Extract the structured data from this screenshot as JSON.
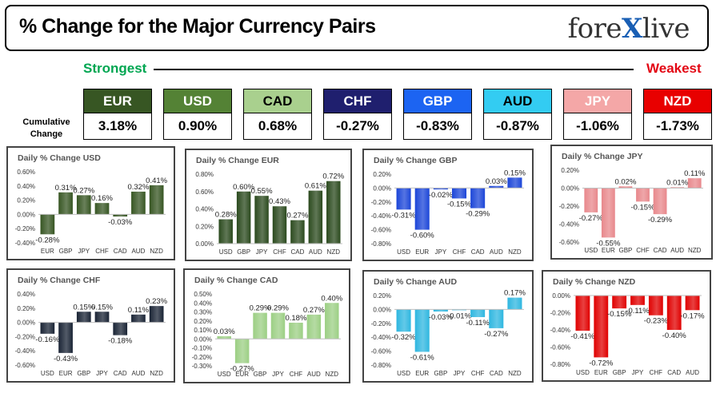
{
  "header": {
    "title": "% Change for the Major Currency Pairs",
    "logo_left": "fore",
    "logo_x": "X",
    "logo_right": "live"
  },
  "strength": {
    "strongest": "Strongest",
    "weakest": "Weakest",
    "cumulative_label_1": "Cumulative",
    "cumulative_label_2": "Change"
  },
  "currencies": [
    {
      "code": "EUR",
      "value": "3.18%",
      "bg": "#375623",
      "fg": "#ffffff"
    },
    {
      "code": "USD",
      "value": "0.90%",
      "bg": "#548235",
      "fg": "#ffffff"
    },
    {
      "code": "CAD",
      "value": "0.68%",
      "bg": "#a9d08e",
      "fg": "#000000"
    },
    {
      "code": "CHF",
      "value": "-0.27%",
      "bg": "#1f1f6e",
      "fg": "#ffffff"
    },
    {
      "code": "GBP",
      "value": "-0.83%",
      "bg": "#1c64f2",
      "fg": "#ffffff"
    },
    {
      "code": "AUD",
      "value": "-0.87%",
      "bg": "#33ccf2",
      "fg": "#000000"
    },
    {
      "code": "JPY",
      "value": "-1.06%",
      "bg": "#f4a7a7",
      "fg": "#ffffff"
    },
    {
      "code": "NZD",
      "value": "-1.73%",
      "bg": "#e80000",
      "fg": "#ffffff"
    }
  ],
  "chart_data": [
    {
      "type": "bar",
      "title": "Daily % Change USD",
      "color": "#375623",
      "categories": [
        "EUR",
        "GBP",
        "JPY",
        "CHF",
        "CAD",
        "AUD",
        "NZD"
      ],
      "values": [
        -0.28,
        0.31,
        0.27,
        0.16,
        -0.03,
        0.32,
        0.41
      ],
      "labels": [
        "-0.28%",
        "0.31%",
        "0.27%",
        "0.16%",
        "-0.03%",
        "0.32%",
        "0.41%"
      ],
      "ylim": [
        -0.4,
        0.6
      ],
      "ticks": [
        "0.60%",
        "0.40%",
        "0.20%",
        "0.00%",
        "-0.20%",
        "-0.40%"
      ]
    },
    {
      "type": "bar",
      "title": "Daily % Change EUR",
      "color": "#2b4a1e",
      "categories": [
        "USD",
        "GBP",
        "JPY",
        "CHF",
        "CAD",
        "AUD",
        "NZD"
      ],
      "values": [
        0.28,
        0.6,
        0.55,
        0.43,
        0.27,
        0.61,
        0.72
      ],
      "labels": [
        "0.28%",
        "0.60%",
        "0.55%",
        "0.43%",
        "0.27%",
        "0.61%",
        "0.72%"
      ],
      "ylim": [
        0,
        0.8
      ],
      "ticks": [
        "0.80%",
        "0.60%",
        "0.40%",
        "0.20%",
        "0.00%"
      ]
    },
    {
      "type": "bar",
      "title": "Daily % Change GBP",
      "color": "#1c46d8",
      "categories": [
        "USD",
        "EUR",
        "JPY",
        "CHF",
        "CAD",
        "AUD",
        "NZD"
      ],
      "values": [
        -0.31,
        -0.6,
        -0.02,
        -0.15,
        -0.29,
        0.03,
        0.15
      ],
      "labels": [
        "-0.31%",
        "-0.60%",
        "-0.02%",
        "-0.15%",
        "-0.29%",
        "0.03%",
        "0.15%"
      ],
      "ylim": [
        -0.8,
        0.2
      ],
      "ticks": [
        "0.20%",
        "0.00%",
        "-0.20%",
        "-0.40%",
        "-0.60%",
        "-0.80%"
      ]
    },
    {
      "type": "bar",
      "title": "Daily % Change JPY",
      "color": "#e8888c",
      "categories": [
        "USD",
        "EUR",
        "GBP",
        "CHF",
        "CAD",
        "AUD",
        "NZD"
      ],
      "values": [
        -0.27,
        -0.55,
        0.02,
        -0.15,
        -0.29,
        0.01,
        0.11
      ],
      "labels": [
        "-0.27%",
        "-0.55%",
        "0.02%",
        "-0.15%",
        "-0.29%",
        "0.01%",
        "0.11%"
      ],
      "ylim": [
        -0.6,
        0.2
      ],
      "ticks": [
        "0.20%",
        "0.00%",
        "-0.20%",
        "-0.40%",
        "-0.60%"
      ]
    },
    {
      "type": "bar",
      "title": "Daily % Change CHF",
      "color": "#1a2435",
      "categories": [
        "USD",
        "EUR",
        "GBP",
        "JPY",
        "CAD",
        "AUD",
        "NZD"
      ],
      "values": [
        -0.16,
        -0.43,
        0.15,
        0.15,
        -0.18,
        0.11,
        0.23
      ],
      "labels": [
        "-0.16%",
        "-0.43%",
        "0.15%",
        "0.15%",
        "-0.18%",
        "0.11%",
        "0.23%"
      ],
      "ylim": [
        -0.6,
        0.4
      ],
      "ticks": [
        "0.40%",
        "0.20%",
        "0.00%",
        "-0.20%",
        "-0.40%",
        "-0.60%"
      ]
    },
    {
      "type": "bar",
      "title": "Daily % Change CAD",
      "color": "#9ccf84",
      "categories": [
        "USD",
        "EUR",
        "GBP",
        "JPY",
        "CHF",
        "AUD",
        "NZD"
      ],
      "values": [
        0.03,
        -0.27,
        0.29,
        0.29,
        0.18,
        0.27,
        0.4
      ],
      "labels": [
        "0.03%",
        "-0.27%",
        "0.29%",
        "0.29%",
        "0.18%",
        "0.27%",
        "0.40%"
      ],
      "ylim": [
        -0.3,
        0.5
      ],
      "ticks": [
        "0.50%",
        "0.40%",
        "0.30%",
        "0.20%",
        "0.10%",
        "0.00%",
        "-0.10%",
        "-0.20%",
        "-0.30%"
      ]
    },
    {
      "type": "bar",
      "title": "Daily % Change AUD",
      "color": "#2fb7e0",
      "categories": [
        "USD",
        "EUR",
        "GBP",
        "JPY",
        "CHF",
        "CAD",
        "NZD"
      ],
      "values": [
        -0.32,
        -0.61,
        -0.03,
        -0.01,
        -0.11,
        -0.27,
        0.17
      ],
      "labels": [
        "-0.32%",
        "-0.61%",
        "-0.03%",
        "-0.01%",
        "-0.11%",
        "-0.27%",
        "0.17%"
      ],
      "ylim": [
        -0.8,
        0.2
      ],
      "ticks": [
        "0.20%",
        "0.00%",
        "-0.20%",
        "-0.40%",
        "-0.60%",
        "-0.80%"
      ]
    },
    {
      "type": "bar",
      "title": "Daily % Change NZD",
      "color": "#e00000",
      "categories": [
        "USD",
        "EUR",
        "GBP",
        "JPY",
        "CHF",
        "CAD",
        "AUD"
      ],
      "values": [
        -0.41,
        -0.72,
        -0.15,
        -0.11,
        -0.23,
        -0.4,
        -0.17
      ],
      "labels": [
        "-0.41%",
        "-0.72%",
        "-0.15%",
        "-0.11%",
        "-0.23%",
        "-0.40%",
        "-0.17%"
      ],
      "ylim": [
        -0.8,
        0
      ],
      "ticks": [
        "0.00%",
        "-0.20%",
        "-0.40%",
        "-0.60%",
        "-0.80%"
      ]
    }
  ]
}
